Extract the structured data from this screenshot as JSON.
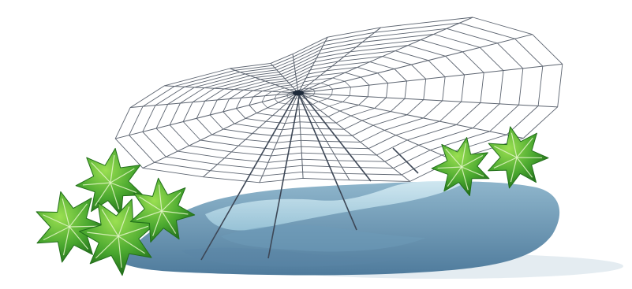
{
  "scene": {
    "colors": {
      "background": "#ffffff",
      "water_light": "#a9cede",
      "water_mid": "#6f9ab6",
      "water_dark": "#4d7697",
      "shadow": "#d7e3ec",
      "web_strand": "#5c6470",
      "web_center": "#1e2a3a",
      "leaf_light": "#8ed44a",
      "leaf_mid": "#48a52e",
      "leaf_dark": "#226f1a",
      "leaf_vein": "#e4f6c8"
    },
    "elements": [
      {
        "name": "water-puddle",
        "description_icon": "puddle-icon"
      },
      {
        "name": "spider-web",
        "description_icon": "spider-web-icon"
      },
      {
        "name": "ivy-leaves-left",
        "description_icon": "leaf-icon"
      },
      {
        "name": "ivy-leaves-right",
        "description_icon": "leaf-icon"
      }
    ]
  }
}
